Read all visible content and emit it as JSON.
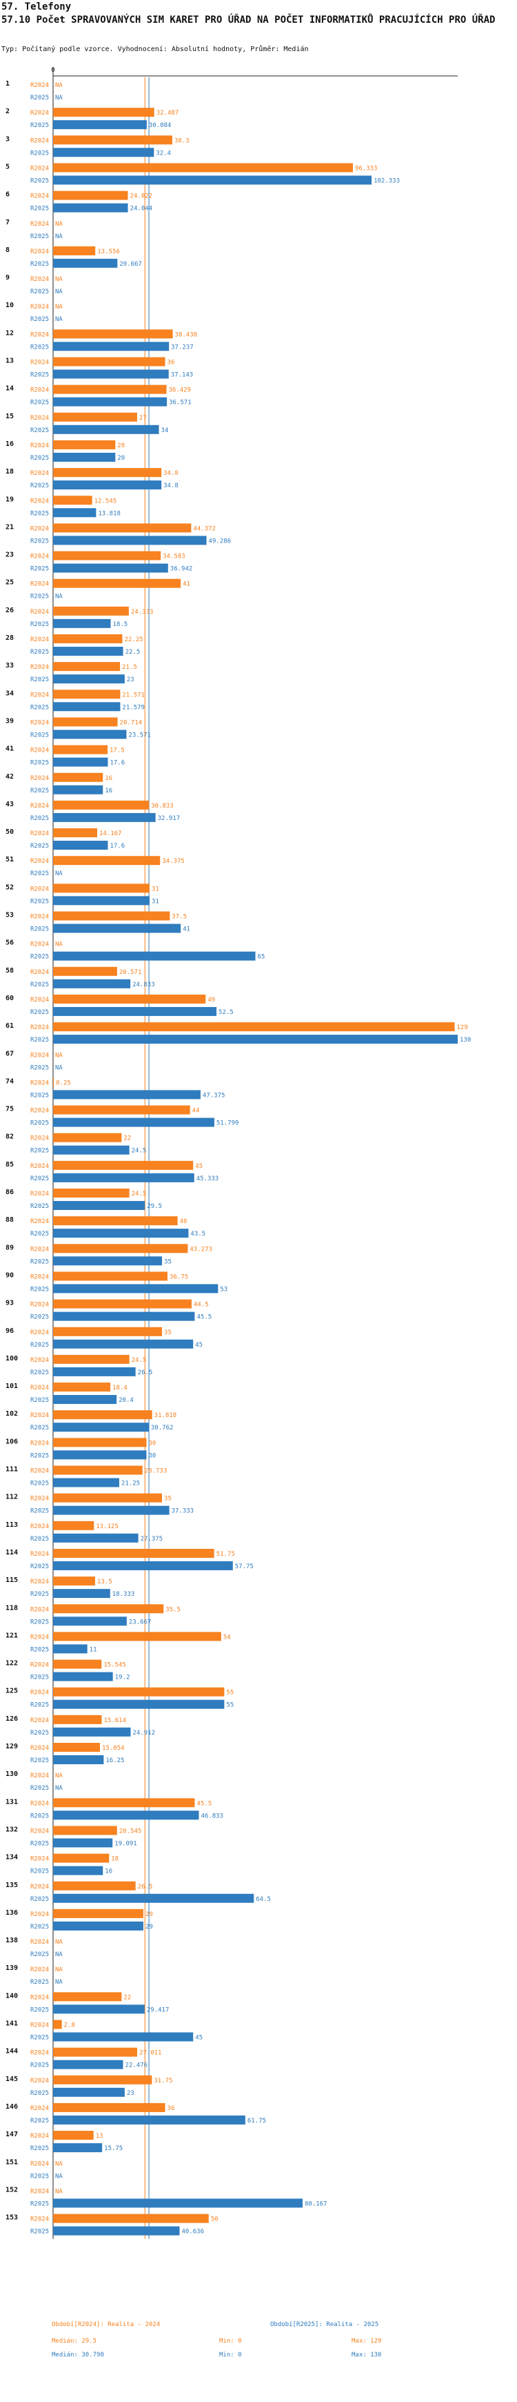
{
  "section": "57. Telefony",
  "title": "57.10 Počet SPRAVOVANÝCH SIM KARET PRO ÚŘAD NA POČET INFORMATIKŮ PRACUJÍCÍCH PRO ÚŘAD",
  "subtitle": "Typ: Počítaný podle vzorce. Vyhodnocení: Absolutní hodnoty, Průměr: Medián",
  "chart_data": {
    "type": "bar",
    "orientation": "horizontal",
    "xlim": [
      0,
      130
    ],
    "axis_zero_label": "0",
    "series_labels": [
      "R2024",
      "R2025"
    ],
    "na_label": "NA",
    "colors": {
      "R2024": "#f7821f",
      "R2025": "#2f7cbf"
    },
    "categories": [
      "1",
      "2",
      "3",
      "5",
      "6",
      "7",
      "8",
      "9",
      "10",
      "12",
      "13",
      "14",
      "15",
      "16",
      "18",
      "19",
      "21",
      "23",
      "25",
      "26",
      "28",
      "33",
      "34",
      "39",
      "41",
      "42",
      "43",
      "50",
      "51",
      "52",
      "53",
      "56",
      "58",
      "60",
      "61",
      "67",
      "74",
      "75",
      "82",
      "85",
      "86",
      "88",
      "89",
      "90",
      "93",
      "96",
      "100",
      "101",
      "102",
      "106",
      "111",
      "112",
      "113",
      "114",
      "115",
      "118",
      "121",
      "122",
      "125",
      "126",
      "129",
      "130",
      "131",
      "132",
      "134",
      "135",
      "136",
      "138",
      "139",
      "140",
      "141",
      "144",
      "145",
      "146",
      "147",
      "151",
      "152",
      "153"
    ],
    "series": [
      {
        "name": "R2024",
        "values": [
          null,
          32.487,
          38.3,
          96.333,
          24.022,
          null,
          13.556,
          null,
          null,
          38.438,
          36,
          36.429,
          27,
          20,
          34.8,
          12.545,
          44.372,
          34.583,
          41,
          24.333,
          22.25,
          21.5,
          21.571,
          20.714,
          17.5,
          16,
          30.833,
          14.167,
          34.375,
          31,
          37.5,
          null,
          20.571,
          49,
          129,
          null,
          0.25,
          44,
          22,
          45,
          24.5,
          40,
          43.273,
          36.75,
          44.5,
          35,
          24.5,
          18.4,
          31.818,
          30,
          28.733,
          35,
          13.125,
          51.75,
          13.5,
          35.5,
          54,
          15.545,
          55,
          15.614,
          15.054,
          null,
          45.5,
          20.545,
          18,
          26.5,
          29,
          null,
          null,
          22,
          2.8,
          27.011,
          31.75,
          36,
          13,
          null,
          null,
          50
        ]
      },
      {
        "name": "R2025",
        "values": [
          null,
          30.084,
          32.4,
          102.333,
          24.044,
          null,
          20.667,
          null,
          null,
          37.237,
          37.143,
          36.571,
          34,
          20,
          34.8,
          13.818,
          49.286,
          36.942,
          null,
          18.5,
          22.5,
          23,
          21.579,
          23.571,
          17.6,
          16,
          32.917,
          17.6,
          null,
          31,
          41,
          65,
          24.833,
          52.5,
          130,
          null,
          47.375,
          51.799,
          24.5,
          45.333,
          29.5,
          43.5,
          35,
          53,
          45.5,
          45,
          26.5,
          20.4,
          30.762,
          30,
          21.25,
          37.333,
          27.375,
          57.75,
          18.333,
          23.667,
          11,
          19.2,
          55,
          24.912,
          16.25,
          null,
          46.833,
          19.091,
          16,
          64.5,
          29,
          null,
          null,
          29.417,
          45,
          22.476,
          23,
          61.75,
          15.75,
          null,
          80.167,
          40.636
        ]
      }
    ],
    "medians": {
      "R2024": 29.5,
      "R2025": 30.798
    },
    "legend": {
      "r2024": {
        "label": "Období[R2024]: Realita - 2024",
        "median": "Medián: 29.5",
        "min": "Min: 0",
        "max": "Max: 129"
      },
      "r2025": {
        "label": "Období[R2025]: Realita - 2025",
        "median": "Medián: 30.798",
        "min": "Min: 0",
        "max": "Max: 130"
      }
    }
  }
}
